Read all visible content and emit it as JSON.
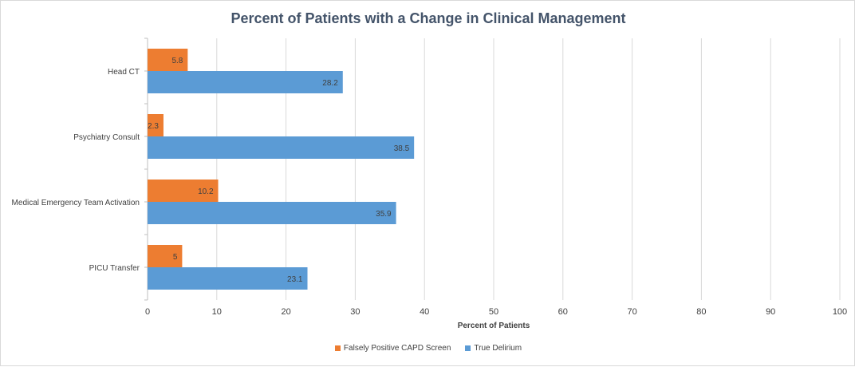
{
  "chart_data": {
    "type": "bar",
    "orientation": "horizontal",
    "title": "Percent of Patients with a Change in Clinical Management",
    "xlabel": "Percent of Patients",
    "ylabel": "",
    "xlim": [
      0,
      100
    ],
    "xticks": [
      0,
      10,
      20,
      30,
      40,
      50,
      60,
      70,
      80,
      90,
      100
    ],
    "categories": [
      "Head CT",
      "Psychiatry Consult",
      "Medical Emergency Team Activation",
      "PICU Transfer"
    ],
    "series": [
      {
        "name": "Falsely Positive CAPD Screen",
        "color": "#ed7d31",
        "values": [
          5.8,
          2.3,
          10.2,
          5
        ]
      },
      {
        "name": "True Delirium",
        "color": "#5b9bd5",
        "values": [
          28.2,
          38.5,
          35.9,
          23.1
        ]
      }
    ],
    "grid": true,
    "legend_position": "bottom",
    "data_labels": true
  }
}
